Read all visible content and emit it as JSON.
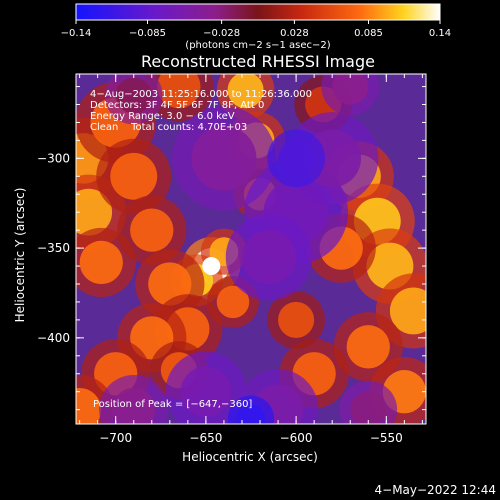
{
  "chart_data": {
    "type": "heatmap",
    "title": "Reconstructed RHESSI Image",
    "xlabel": "Heliocentric X (arcsec)",
    "ylabel": "Heliocentric Y (arcsec)",
    "xlim": [
      -722,
      -528
    ],
    "ylim": [
      -448,
      -253
    ],
    "x_ticks": [
      -700,
      -650,
      -600,
      -550
    ],
    "x_tick_labels": [
      "−700",
      "−650",
      "−600",
      "−550"
    ],
    "y_ticks": [
      -300,
      -350,
      -400
    ],
    "y_tick_labels": [
      "−300",
      "−350",
      "−400"
    ],
    "colorbar": {
      "min": -0.14,
      "max": 0.14,
      "ticks": [
        -0.14,
        -0.085,
        -0.028,
        0.028,
        0.085,
        0.14
      ],
      "tick_labels": [
        "−0.14",
        "−0.085",
        "−0.028",
        "0.028",
        "0.085",
        "0.14"
      ],
      "units": "(photons cm−2 s−1 asec−2)"
    },
    "annotations": [
      "4−Aug−2003 11:25:16.000 to 11:26:36.000",
      "Detectors: 3F 4F 5F 6F 7F 8F, Att 0",
      "Energy Range: 3.0 − 6.0 keV",
      "Clean    Total counts: 4.70E+03"
    ],
    "peak_label": "Position of Peak = [−647,−360]",
    "peak": [
      -647,
      -360
    ],
    "colormap": [
      "#1414ff",
      "#6a19c8",
      "#8c1e8c",
      "#7a1418",
      "#c82810",
      "#ff6a10",
      "#ffd41e",
      "#ffffff"
    ],
    "grid": false
  },
  "footer": {
    "date": "4−May−2022 12:44"
  }
}
